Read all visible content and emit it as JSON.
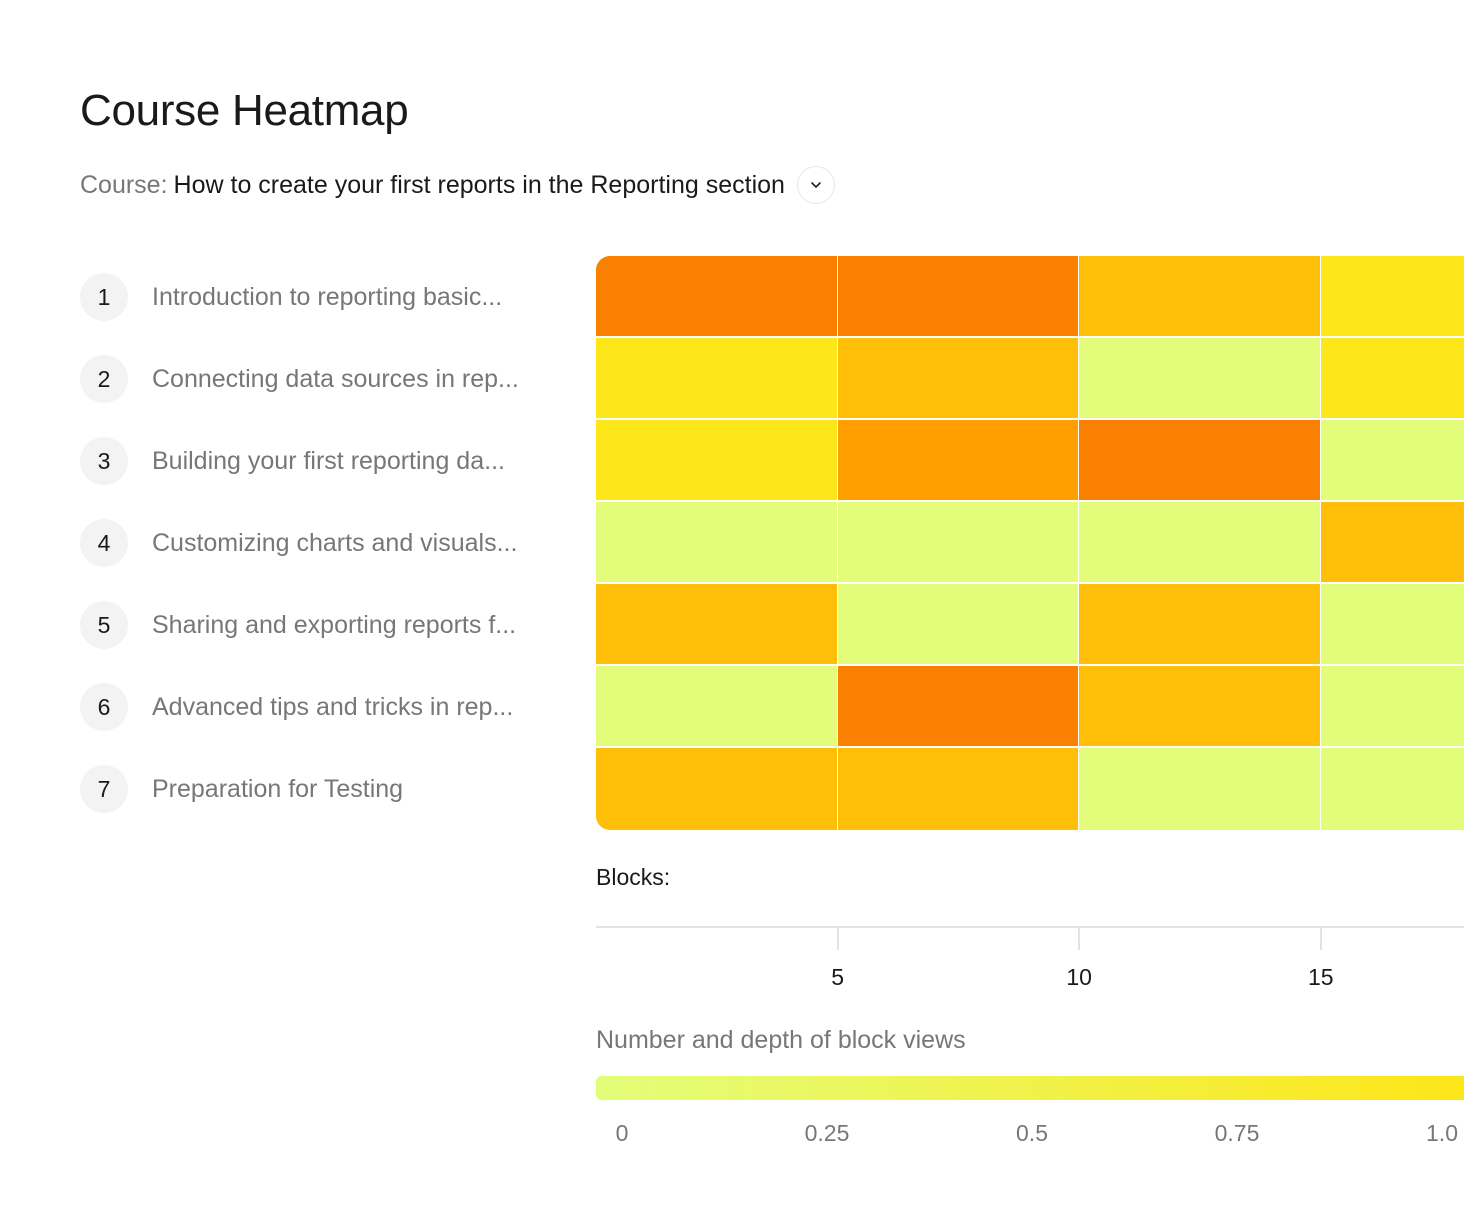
{
  "header": {
    "title": "Course Heatmap",
    "course_label": "Course:",
    "course_value": "How to create your first reports in the Reporting section"
  },
  "lessons": [
    {
      "num": "1",
      "name": "Introduction to reporting basic..."
    },
    {
      "num": "2",
      "name": "Connecting data sources in rep..."
    },
    {
      "num": "3",
      "name": "Building your first reporting da..."
    },
    {
      "num": "4",
      "name": "Customizing charts and visuals..."
    },
    {
      "num": "5",
      "name": "Sharing and exporting reports f..."
    },
    {
      "num": "6",
      "name": "Advanced tips and tricks in rep..."
    },
    {
      "num": "7",
      "name": "Preparation for Testing"
    }
  ],
  "chart_data": {
    "type": "heatmap",
    "xlabel": "Blocks:",
    "x_ticks": [
      5,
      10,
      15
    ],
    "x_tick_labels": [
      "5",
      "10",
      "15"
    ],
    "block_span_per_column": 5,
    "rows": [
      "1",
      "2",
      "3",
      "4",
      "5",
      "6",
      "7"
    ],
    "values": [
      [
        4,
        4,
        2,
        1
      ],
      [
        1,
        2,
        0,
        1
      ],
      [
        1,
        3,
        4,
        0
      ],
      [
        0,
        0,
        0,
        2
      ],
      [
        2,
        0,
        2,
        0
      ],
      [
        0,
        4,
        2,
        0
      ],
      [
        2,
        2,
        0,
        0
      ]
    ],
    "color_levels": [
      "#e3fd7a",
      "#fde619",
      "#ffbe07",
      "#ffa000",
      "#f98000"
    ],
    "legend": {
      "title": "Number and depth of block views",
      "ticks": [
        "0",
        "0.25",
        "0.5",
        "0.75",
        "1.0"
      ],
      "range": [
        0,
        1.0
      ],
      "colors": [
        "#e3fd7a",
        "#fde619"
      ]
    }
  }
}
